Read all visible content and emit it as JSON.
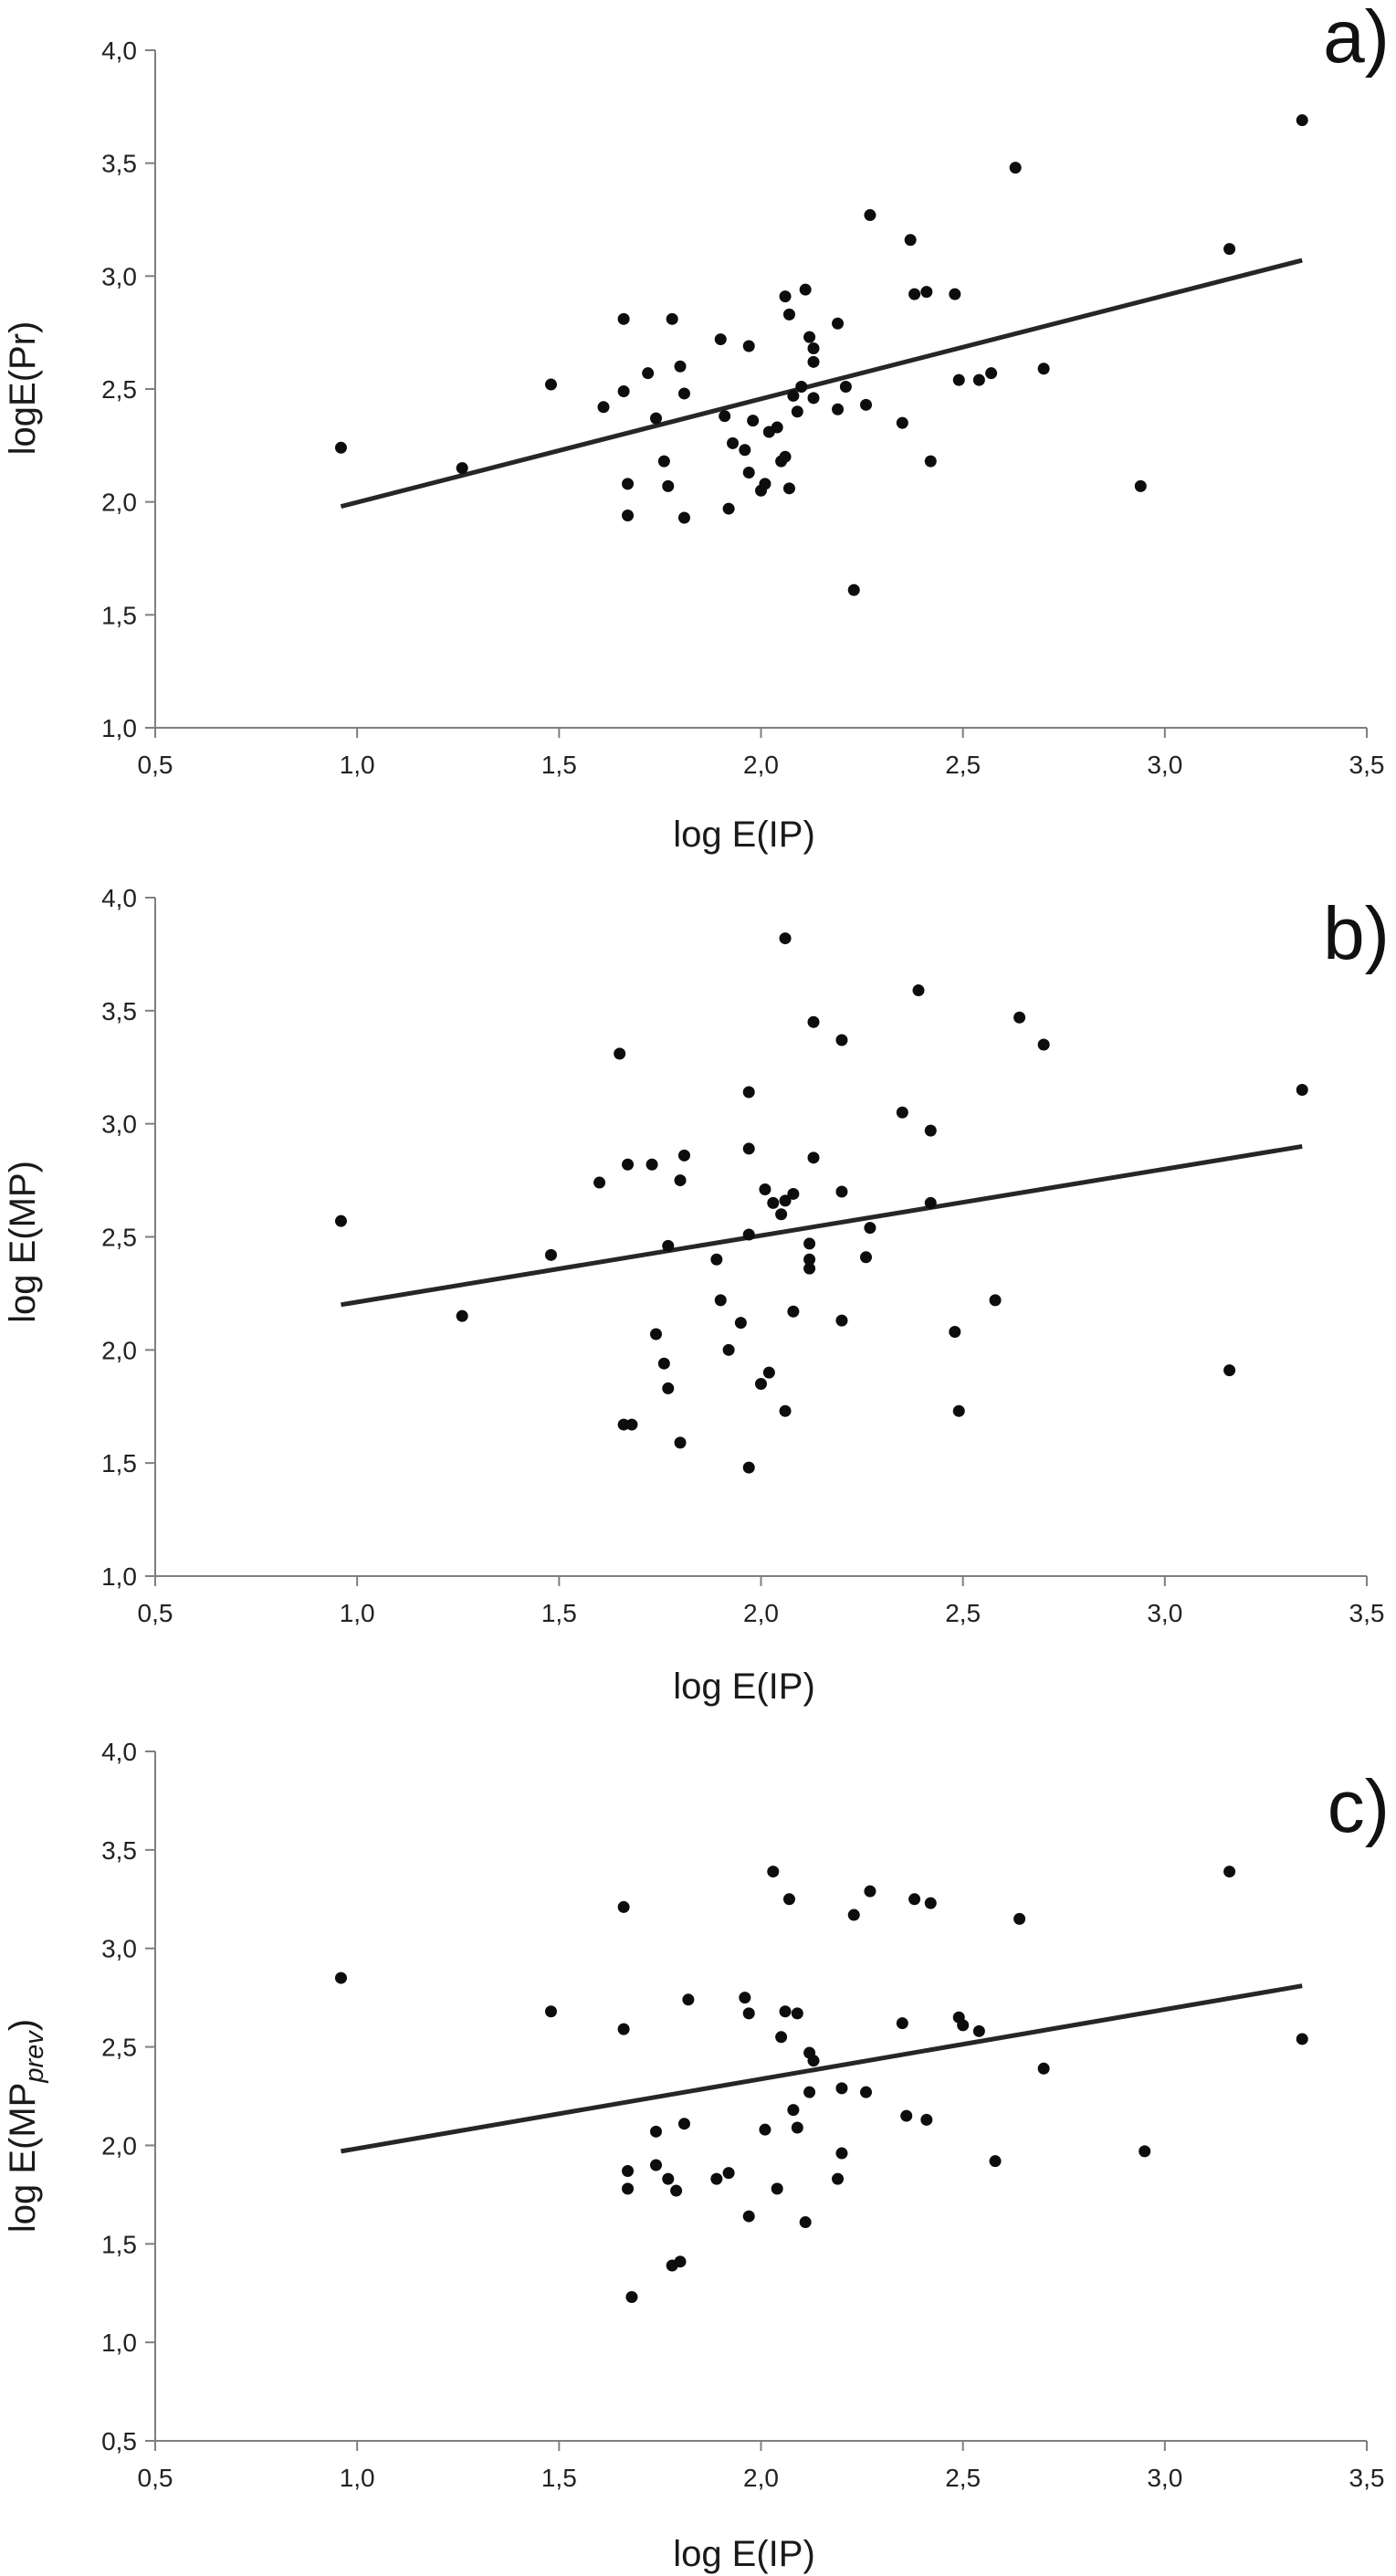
{
  "chart_data": [
    {
      "type": "scatter",
      "panel_label": "a)",
      "xlabel": "log E(IP)",
      "ylabel": "logE(Pr)",
      "xlim": [
        0.5,
        3.5
      ],
      "ylim": [
        1.0,
        4.0
      ],
      "x_ticks": [
        "0,5",
        "1,0",
        "1,5",
        "2,0",
        "2,5",
        "3,0",
        "3,5"
      ],
      "y_ticks": [
        "1,0",
        "1,5",
        "2,0",
        "2,5",
        "3,0",
        "3,5",
        "4,0"
      ],
      "grid": false,
      "trendline": [
        [
          0.96,
          1.98
        ],
        [
          3.34,
          3.07
        ]
      ],
      "points": [
        [
          0.96,
          2.24
        ],
        [
          1.26,
          2.15
        ],
        [
          1.48,
          2.52
        ],
        [
          1.61,
          2.42
        ],
        [
          1.66,
          2.81
        ],
        [
          1.66,
          2.49
        ],
        [
          1.67,
          2.08
        ],
        [
          1.67,
          1.94
        ],
        [
          1.72,
          2.57
        ],
        [
          1.74,
          2.37
        ],
        [
          1.76,
          2.18
        ],
        [
          1.77,
          2.07
        ],
        [
          1.78,
          2.81
        ],
        [
          1.8,
          2.6
        ],
        [
          1.81,
          2.48
        ],
        [
          1.81,
          1.93
        ],
        [
          1.9,
          2.72
        ],
        [
          1.91,
          2.38
        ],
        [
          1.92,
          1.97
        ],
        [
          1.93,
          2.26
        ],
        [
          1.96,
          2.23
        ],
        [
          1.97,
          2.69
        ],
        [
          1.97,
          2.13
        ],
        [
          1.98,
          2.36
        ],
        [
          2.0,
          2.05
        ],
        [
          2.01,
          2.08
        ],
        [
          2.02,
          2.31
        ],
        [
          2.04,
          2.33
        ],
        [
          2.05,
          2.18
        ],
        [
          2.06,
          2.91
        ],
        [
          2.06,
          2.2
        ],
        [
          2.07,
          2.06
        ],
        [
          2.07,
          2.83
        ],
        [
          2.08,
          2.47
        ],
        [
          2.09,
          2.4
        ],
        [
          2.1,
          2.51
        ],
        [
          2.11,
          2.94
        ],
        [
          2.12,
          2.73
        ],
        [
          2.13,
          2.68
        ],
        [
          2.13,
          2.62
        ],
        [
          2.13,
          2.46
        ],
        [
          2.19,
          2.79
        ],
        [
          2.19,
          2.41
        ],
        [
          2.21,
          2.51
        ],
        [
          2.23,
          1.61
        ],
        [
          2.26,
          2.43
        ],
        [
          2.27,
          3.27
        ],
        [
          2.35,
          2.35
        ],
        [
          2.37,
          3.16
        ],
        [
          2.38,
          2.92
        ],
        [
          2.41,
          2.93
        ],
        [
          2.42,
          2.18
        ],
        [
          2.48,
          2.92
        ],
        [
          2.49,
          2.54
        ],
        [
          2.54,
          2.54
        ],
        [
          2.57,
          2.57
        ],
        [
          2.63,
          3.48
        ],
        [
          2.7,
          2.59
        ],
        [
          2.94,
          2.07
        ],
        [
          3.16,
          3.12
        ],
        [
          3.34,
          3.69
        ]
      ]
    },
    {
      "type": "scatter",
      "panel_label": "b)",
      "xlabel": "log E(IP)",
      "ylabel": "log E(MP)",
      "xlim": [
        0.5,
        3.5
      ],
      "ylim": [
        1.0,
        4.0
      ],
      "x_ticks": [
        "0,5",
        "1,0",
        "1,5",
        "2,0",
        "2,5",
        "3,0",
        "3,5"
      ],
      "y_ticks": [
        "1,0",
        "1,5",
        "2,0",
        "2,5",
        "3,0",
        "3,5",
        "4,0"
      ],
      "grid": false,
      "trendline": [
        [
          0.96,
          2.2
        ],
        [
          3.34,
          2.9
        ]
      ],
      "points": [
        [
          0.96,
          2.57
        ],
        [
          1.26,
          2.15
        ],
        [
          1.48,
          2.42
        ],
        [
          1.6,
          2.74
        ],
        [
          1.65,
          3.31
        ],
        [
          1.66,
          1.67
        ],
        [
          1.67,
          2.82
        ],
        [
          1.68,
          1.67
        ],
        [
          1.73,
          2.82
        ],
        [
          1.74,
          2.07
        ],
        [
          1.76,
          1.94
        ],
        [
          1.77,
          1.83
        ],
        [
          1.77,
          2.46
        ],
        [
          1.8,
          1.59
        ],
        [
          1.8,
          2.75
        ],
        [
          1.81,
          2.86
        ],
        [
          1.89,
          2.4
        ],
        [
          1.9,
          2.22
        ],
        [
          1.92,
          2.0
        ],
        [
          1.95,
          2.12
        ],
        [
          1.97,
          2.89
        ],
        [
          1.97,
          3.14
        ],
        [
          1.97,
          2.51
        ],
        [
          1.97,
          1.48
        ],
        [
          2.0,
          1.85
        ],
        [
          2.01,
          2.71
        ],
        [
          2.02,
          1.9
        ],
        [
          2.03,
          2.65
        ],
        [
          2.05,
          2.6
        ],
        [
          2.06,
          2.66
        ],
        [
          2.06,
          3.82
        ],
        [
          2.06,
          1.73
        ],
        [
          2.08,
          2.69
        ],
        [
          2.08,
          2.17
        ],
        [
          2.12,
          2.4
        ],
        [
          2.12,
          2.47
        ],
        [
          2.12,
          2.36
        ],
        [
          2.13,
          2.85
        ],
        [
          2.13,
          3.45
        ],
        [
          2.2,
          3.37
        ],
        [
          2.2,
          2.7
        ],
        [
          2.2,
          2.13
        ],
        [
          2.26,
          2.41
        ],
        [
          2.27,
          2.54
        ],
        [
          2.35,
          3.05
        ],
        [
          2.39,
          3.59
        ],
        [
          2.42,
          2.97
        ],
        [
          2.42,
          2.65
        ],
        [
          2.48,
          2.08
        ],
        [
          2.49,
          1.73
        ],
        [
          2.58,
          2.22
        ],
        [
          2.64,
          3.47
        ],
        [
          2.7,
          3.35
        ],
        [
          3.16,
          1.91
        ],
        [
          3.34,
          3.15
        ]
      ]
    },
    {
      "type": "scatter",
      "panel_label": "c)",
      "xlabel": "log E(IP)",
      "ylabel_main": "log E(MP",
      "ylabel_sub": "prev",
      "ylabel_end": ")",
      "xlim": [
        0.5,
        3.5
      ],
      "ylim": [
        0.5,
        4.0
      ],
      "x_ticks": [
        "0,5",
        "1,0",
        "1,5",
        "2,0",
        "2,5",
        "3,0",
        "3,5"
      ],
      "y_ticks": [
        "0,5",
        "1,0",
        "1,5",
        "2,0",
        "2,5",
        "3,0",
        "3,5",
        "4,0"
      ],
      "grid": false,
      "trendline": [
        [
          0.96,
          1.97
        ],
        [
          3.34,
          2.81
        ]
      ],
      "points": [
        [
          0.96,
          2.85
        ],
        [
          1.48,
          2.68
        ],
        [
          1.66,
          3.21
        ],
        [
          1.66,
          2.59
        ],
        [
          1.67,
          1.87
        ],
        [
          1.67,
          1.78
        ],
        [
          1.68,
          1.23
        ],
        [
          1.74,
          2.07
        ],
        [
          1.74,
          1.9
        ],
        [
          1.77,
          1.83
        ],
        [
          1.78,
          1.39
        ],
        [
          1.79,
          1.77
        ],
        [
          1.8,
          1.41
        ],
        [
          1.81,
          2.11
        ],
        [
          1.82,
          2.74
        ],
        [
          1.89,
          1.83
        ],
        [
          1.92,
          1.86
        ],
        [
          1.96,
          2.75
        ],
        [
          1.97,
          2.67
        ],
        [
          1.97,
          1.64
        ],
        [
          2.01,
          2.08
        ],
        [
          2.03,
          3.39
        ],
        [
          2.04,
          1.78
        ],
        [
          2.05,
          2.55
        ],
        [
          2.06,
          2.68
        ],
        [
          2.07,
          3.25
        ],
        [
          2.08,
          2.18
        ],
        [
          2.09,
          2.67
        ],
        [
          2.09,
          2.09
        ],
        [
          2.11,
          1.61
        ],
        [
          2.12,
          2.47
        ],
        [
          2.12,
          2.27
        ],
        [
          2.13,
          2.43
        ],
        [
          2.19,
          1.83
        ],
        [
          2.2,
          1.96
        ],
        [
          2.2,
          2.29
        ],
        [
          2.23,
          3.17
        ],
        [
          2.26,
          2.27
        ],
        [
          2.27,
          3.29
        ],
        [
          2.35,
          2.62
        ],
        [
          2.36,
          2.15
        ],
        [
          2.38,
          3.25
        ],
        [
          2.41,
          2.13
        ],
        [
          2.42,
          3.23
        ],
        [
          2.49,
          2.65
        ],
        [
          2.5,
          2.61
        ],
        [
          2.54,
          2.58
        ],
        [
          2.58,
          1.92
        ],
        [
          2.64,
          3.15
        ],
        [
          2.7,
          2.39
        ],
        [
          2.95,
          1.97
        ],
        [
          3.16,
          3.39
        ],
        [
          3.34,
          2.54
        ]
      ]
    }
  ]
}
